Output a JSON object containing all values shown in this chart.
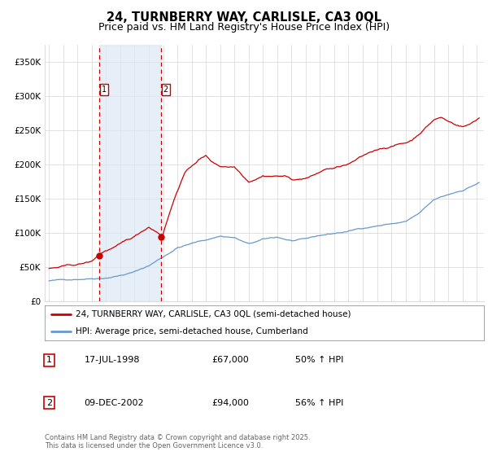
{
  "title_line1": "24, TURNBERRY WAY, CARLISLE, CA3 0QL",
  "title_line2": "Price paid vs. HM Land Registry's House Price Index (HPI)",
  "legend_label_red": "24, TURNBERRY WAY, CARLISLE, CA3 0QL (semi-detached house)",
  "legend_label_blue": "HPI: Average price, semi-detached house, Cumberland",
  "purchase1": {
    "date_str": "17-JUL-1998",
    "price": 67000,
    "hpi_change": "50% ↑ HPI",
    "label": "1"
  },
  "purchase2": {
    "date_str": "09-DEC-2002",
    "price": 94000,
    "hpi_change": "56% ↑ HPI",
    "label": "2"
  },
  "footnote": "Contains HM Land Registry data © Crown copyright and database right 2025.\nThis data is licensed under the Open Government Licence v3.0.",
  "ylim": [
    0,
    375000
  ],
  "color_red": "#cc0000",
  "color_blue": "#6699cc",
  "color_dashed": "#cc0000",
  "color_shading": "#dce8f5",
  "background_plot": "#ffffff",
  "background_fig": "#ffffff",
  "grid_color": "#dddddd"
}
